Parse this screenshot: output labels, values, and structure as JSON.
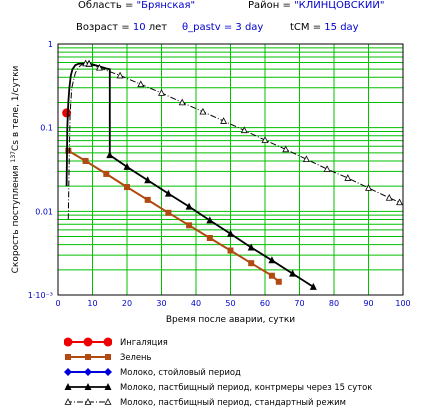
{
  "header": {
    "region_label": "Область = ",
    "region_value": "\"Брянская\"",
    "district_label": "Район = ",
    "district_value": "\"КЛИНЦОВСКИЙ\"",
    "age_label": "Возраст = ",
    "age_value": "10",
    "age_unit": " лет",
    "pastv_label": "θ_pastv = ",
    "pastv_value": "3",
    "pastv_unit": " day",
    "tcm_label": "tCM = ",
    "tcm_value": "15",
    "tcm_unit": " day"
  },
  "chart_data": {
    "type": "line",
    "xlabel": "Время после аварии, сутки",
    "ylabel_parts": [
      "Скорость поступления ",
      "137",
      "Cs в теле, 1/сутки"
    ],
    "xlim": [
      0,
      100
    ],
    "ylim": [
      0.001,
      1
    ],
    "yscale": "log",
    "grid": true,
    "xticks": [
      "0",
      "10",
      "20",
      "30",
      "40",
      "50",
      "60",
      "70",
      "80",
      "90",
      "100"
    ],
    "yticks": [
      {
        "value": 1,
        "label": "1"
      },
      {
        "value": 0.1,
        "label": "0.1"
      },
      {
        "value": 0.01,
        "label": "0.01"
      },
      {
        "value": 0.001,
        "label": "1·10⁻³"
      }
    ],
    "series": [
      {
        "name": "Ингаляция",
        "color": "#ee0000",
        "marker": "circle",
        "x": [
          2.5
        ],
        "y": [
          0.15
        ]
      },
      {
        "name": "Зелень",
        "color": "#b04a10",
        "marker": "square",
        "x": [
          3,
          8,
          14,
          20,
          26,
          32,
          38,
          44,
          50,
          56,
          62,
          64
        ],
        "y": [
          0.053,
          0.04,
          0.028,
          0.0195,
          0.0137,
          0.0096,
          0.0068,
          0.0048,
          0.0034,
          0.0024,
          0.0017,
          0.00144
        ]
      },
      {
        "name": "Молоко, стойловый период",
        "color": "#0000dd",
        "marker": "diamond",
        "x": [],
        "y": []
      },
      {
        "name": "Молоко, пастбищный период, контрмеры через 15 суток",
        "color": "#000000",
        "marker": "triangle",
        "x": [
          2.5,
          2.7,
          3,
          3.3,
          3.7,
          4.2,
          5,
          6,
          7,
          8,
          9,
          10,
          12,
          14,
          15,
          15,
          20,
          26,
          32,
          38,
          44,
          50,
          56,
          62,
          68,
          74
        ],
        "y": [
          0.02,
          0.1,
          0.2,
          0.3,
          0.42,
          0.5,
          0.56,
          0.58,
          0.585,
          0.585,
          0.58,
          0.57,
          0.54,
          0.51,
          0.5,
          0.047,
          0.034,
          0.0235,
          0.0163,
          0.0114,
          0.0078,
          0.0054,
          0.0037,
          0.0026,
          0.0018,
          0.00125
        ]
      },
      {
        "name": "Молоко, пастбищный период, стандартный режим",
        "color": "#000000",
        "marker": "open-triangle",
        "x": [
          3,
          3.2,
          3.5,
          4,
          5,
          6,
          7,
          8,
          9,
          12,
          18,
          24,
          30,
          36,
          42,
          48,
          54,
          60,
          66,
          72,
          78,
          84,
          90,
          96,
          99
        ],
        "y": [
          0.008,
          0.03,
          0.15,
          0.3,
          0.45,
          0.53,
          0.57,
          0.585,
          0.58,
          0.52,
          0.42,
          0.33,
          0.26,
          0.2,
          0.155,
          0.12,
          0.093,
          0.071,
          0.055,
          0.042,
          0.032,
          0.025,
          0.019,
          0.0145,
          0.0128
        ]
      }
    ]
  },
  "colors": {
    "grid": "#00c000",
    "axis_text": "#0000cc"
  }
}
